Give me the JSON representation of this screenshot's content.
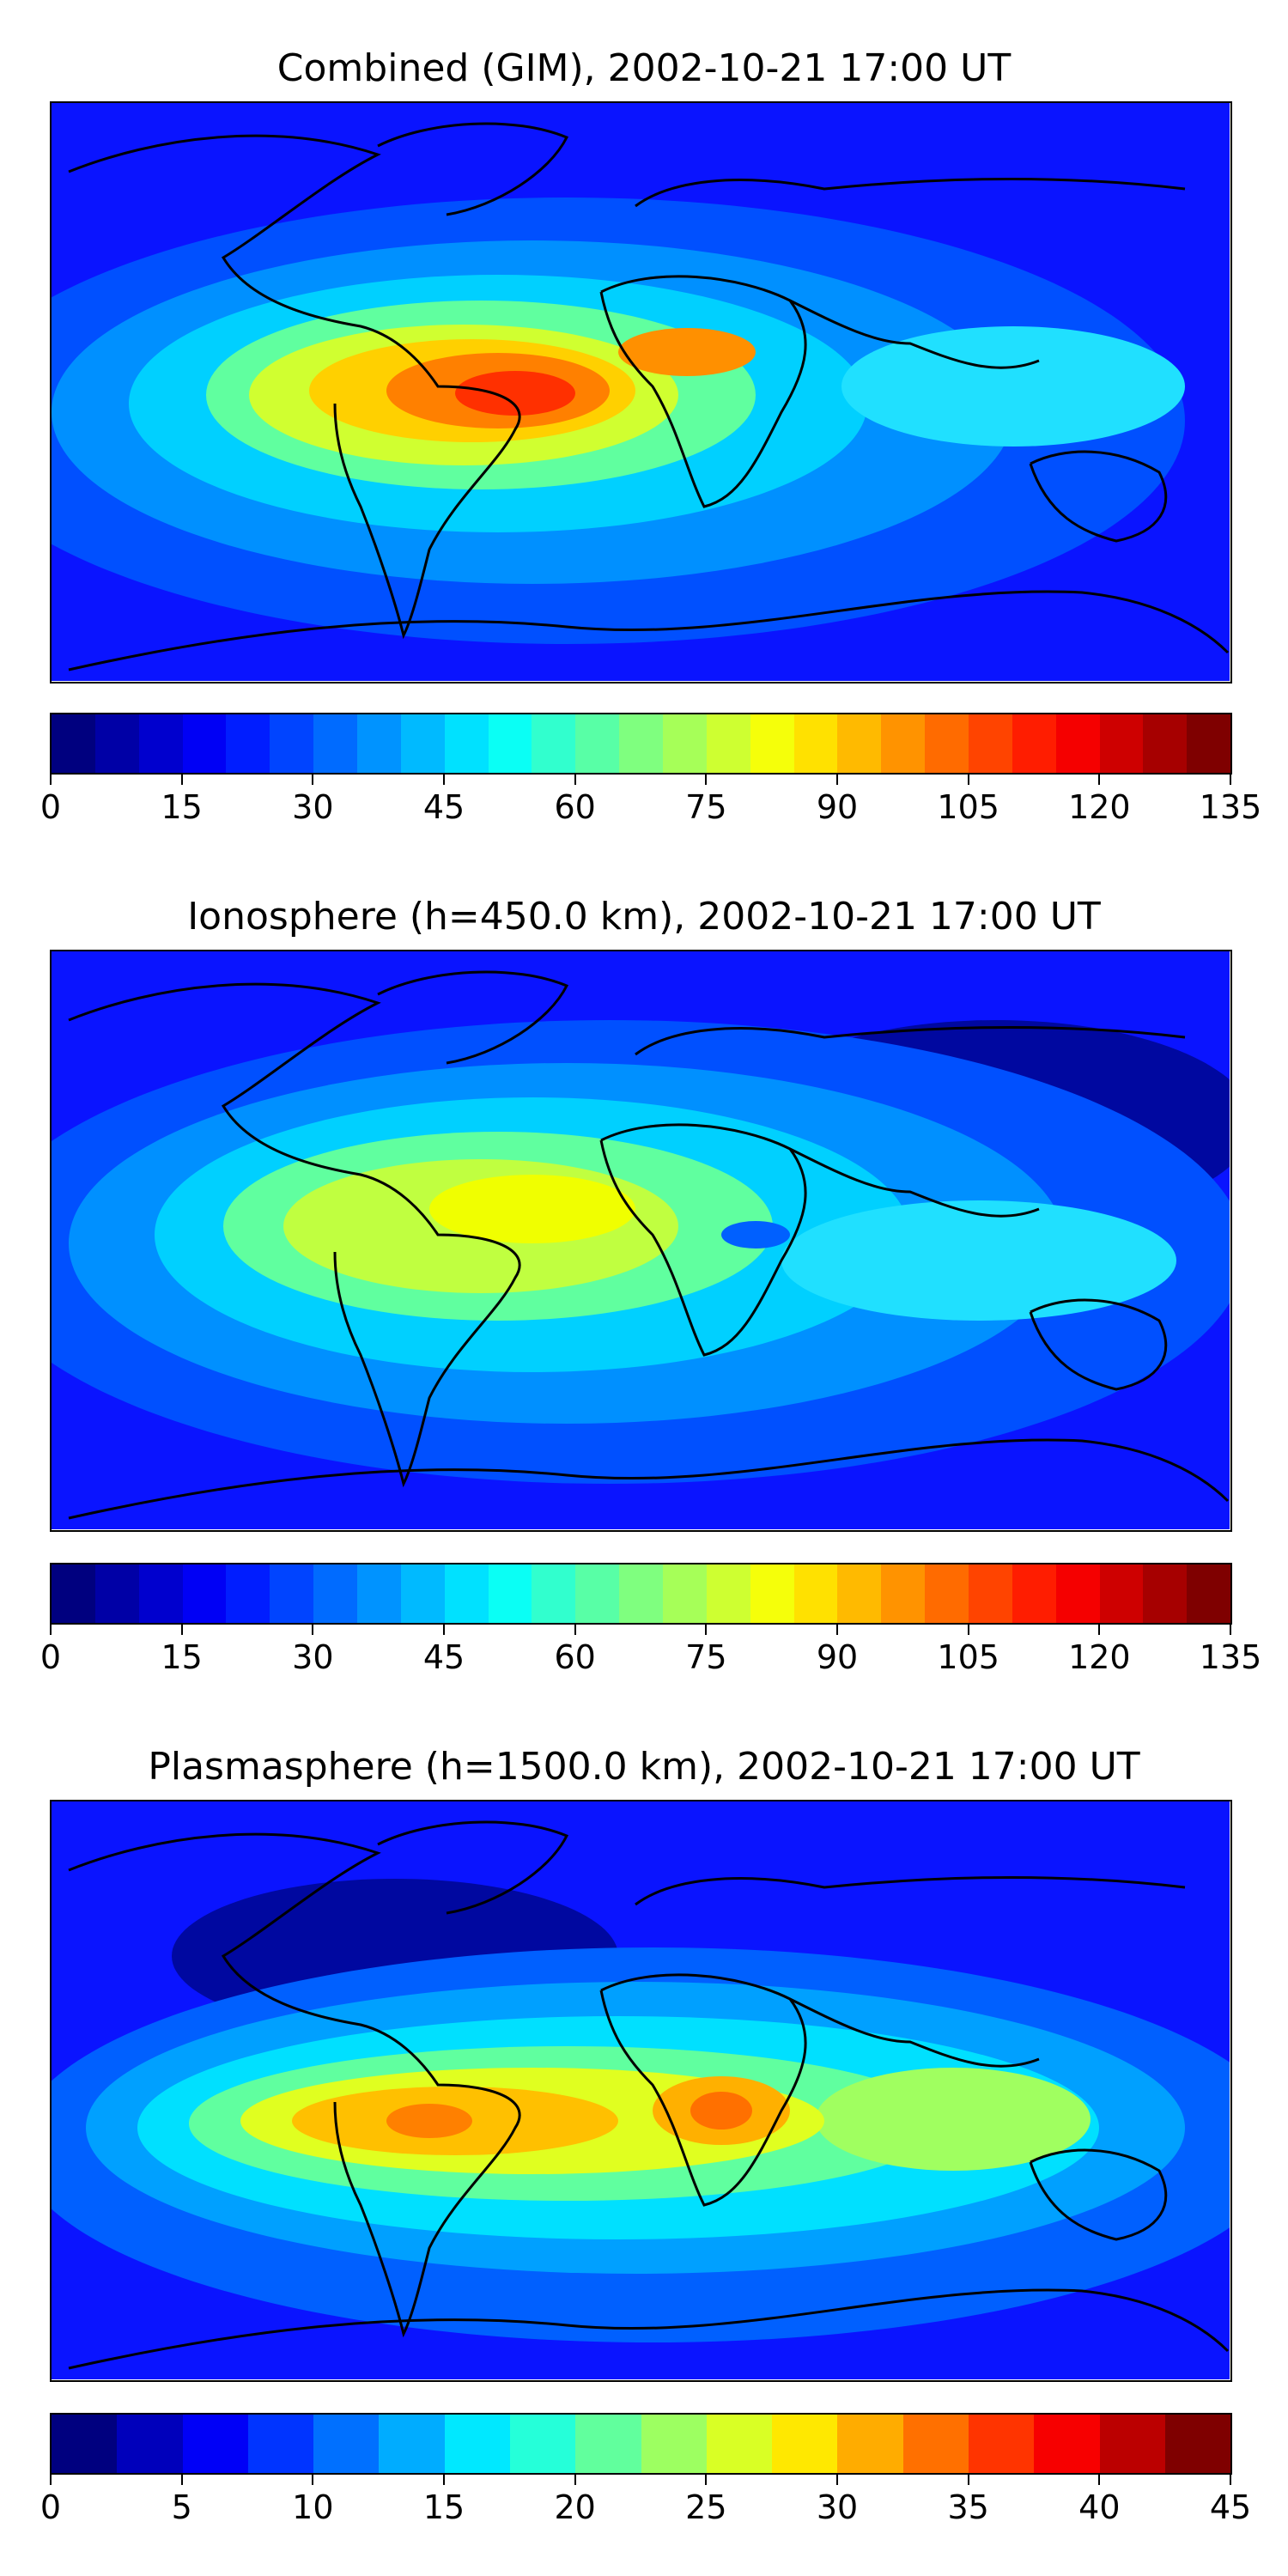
{
  "panels": [
    {
      "title": "Combined (GIM), 2002-10-21 17:00 UT",
      "colorbar": {
        "min": 0,
        "max": 135,
        "levels": 27,
        "ticks": [
          "0",
          "15",
          "30",
          "45",
          "60",
          "75",
          "90",
          "105",
          "120",
          "135"
        ]
      }
    },
    {
      "title": "Ionosphere  (h=450.0 km), 2002-10-21 17:00 UT",
      "colorbar": {
        "min": 0,
        "max": 135,
        "levels": 27,
        "ticks": [
          "0",
          "15",
          "30",
          "45",
          "60",
          "75",
          "90",
          "105",
          "120",
          "135"
        ]
      }
    },
    {
      "title": "Plasmasphere (h=1500.0 km), 2002-10-21 17:00 UT",
      "colorbar": {
        "min": 0,
        "max": 45,
        "levels": 18,
        "ticks": [
          "0",
          "5",
          "10",
          "15",
          "20",
          "25",
          "30",
          "35",
          "40",
          "45"
        ]
      }
    }
  ],
  "colors": {
    "jet": [
      "#00007f",
      "#0000ff",
      "#007fff",
      "#00ffff",
      "#7fff7f",
      "#ffff00",
      "#ff7f00",
      "#ff0000",
      "#7f0000"
    ]
  }
}
